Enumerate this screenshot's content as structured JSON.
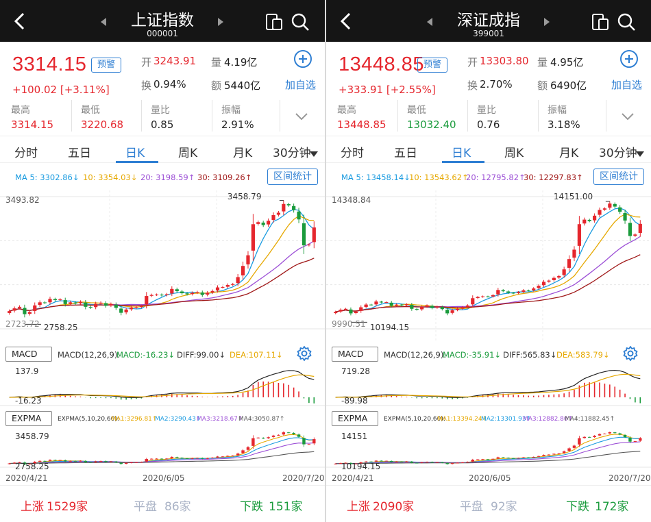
{
  "panels": [
    {
      "header": {
        "title": "上证指数",
        "code": "000001"
      },
      "quote": {
        "price": "3314.15",
        "alert_label": "预警",
        "change": "+100.02",
        "change_pct": "[+3.11%]",
        "open_label": "开",
        "open": "3243.91",
        "volume_label": "量",
        "volume": "4.19亿",
        "turnover_label": "换",
        "turnover": "0.94%",
        "amount_label": "额",
        "amount": "5440亿",
        "add_watch_label": "加自选"
      },
      "stats": [
        {
          "label": "最高",
          "value": "3314.15",
          "color": "red"
        },
        {
          "label": "最低",
          "value": "3220.68",
          "color": "red"
        },
        {
          "label": "量比",
          "value": "0.85",
          "color": "black"
        },
        {
          "label": "振幅",
          "value": "2.91%",
          "color": "black"
        }
      ],
      "tabs": [
        {
          "label": "分时"
        },
        {
          "label": "五日"
        },
        {
          "label": "日K",
          "active": true
        },
        {
          "label": "周K"
        },
        {
          "label": "月K"
        },
        {
          "label": "30分钟"
        }
      ],
      "ma_legend": [
        {
          "text": "MA 5: 3302.86↓",
          "color": "#1a9be0"
        },
        {
          "text": "10: 3354.03↓",
          "color": "#e6a800"
        },
        {
          "text": "20: 3198.59↑",
          "color": "#9c4fd6"
        },
        {
          "text": "30: 3109.26↑",
          "color": "#a01818"
        }
      ],
      "range_stats_label": "区间统计",
      "kline": {
        "top_label": "3493.82",
        "bottom_label": "2723.72",
        "high_mark": "3458.79",
        "low_mark": "2758.25"
      },
      "macd": {
        "button": "MACD",
        "params": "MACD(12,26,9):",
        "macd_val": "MACD:-16.23↓",
        "diff_val": "DIFF:99.00↓",
        "dea_val": "DEA:107.11↓",
        "top_label": "137.9",
        "bottom_label": "-16.23"
      },
      "expma": {
        "button": "EXPMA",
        "params": "EXPMA(5,10,20,60):",
        "ma1": "MA1:3296.81↑",
        "ma2": "MA2:3290.43↑",
        "ma3": "MA3:3218.67↑",
        "ma4": "MA4:3050.87↑",
        "top_label": "3458.79",
        "bottom_label": "2758.25"
      },
      "dates": [
        "2020/4/21",
        "2020/6/05",
        "2020/7/20"
      ],
      "footer": {
        "up_label": "上涨",
        "up_count": "1529家",
        "flat_label": "平盘",
        "flat_count": "86家",
        "down_label": "下跌",
        "down_count": "151家"
      }
    },
    {
      "header": {
        "title": "深证成指",
        "code": "399001"
      },
      "quote": {
        "price": "13448.85",
        "alert_label": "预警",
        "change": "+333.91",
        "change_pct": "[+2.55%]",
        "open_label": "开",
        "open": "13303.80",
        "volume_label": "量",
        "volume": "4.95亿",
        "turnover_label": "换",
        "turnover": "2.70%",
        "amount_label": "额",
        "amount": "6490亿",
        "add_watch_label": "加自选"
      },
      "stats": [
        {
          "label": "最高",
          "value": "13448.85",
          "color": "red"
        },
        {
          "label": "最低",
          "value": "13032.40",
          "color": "green"
        },
        {
          "label": "量比",
          "value": "0.76",
          "color": "black"
        },
        {
          "label": "振幅",
          "value": "3.18%",
          "color": "black"
        }
      ],
      "tabs": [
        {
          "label": "分时"
        },
        {
          "label": "五日"
        },
        {
          "label": "日K",
          "active": true
        },
        {
          "label": "周K"
        },
        {
          "label": "月K"
        },
        {
          "label": "30分钟"
        }
      ],
      "ma_legend": [
        {
          "text": "MA 5: 13458.14↓",
          "color": "#1a9be0"
        },
        {
          "text": "10: 13543.62↑",
          "color": "#e6a800"
        },
        {
          "text": "20: 12795.82↑",
          "color": "#9c4fd6"
        },
        {
          "text": "30: 12297.83↑",
          "color": "#a01818"
        }
      ],
      "range_stats_label": "区间统计",
      "kline": {
        "top_label": "14348.84",
        "bottom_label": "9990.51",
        "high_mark": "14151.00",
        "low_mark": "10194.15"
      },
      "macd": {
        "button": "MACD",
        "params": "MACD(12,26,9):",
        "macd_val": "MACD:-35.91↓",
        "diff_val": "DIFF:565.83↓",
        "dea_val": "DEA:583.79↓",
        "top_label": "719.28",
        "bottom_label": "-89.98"
      },
      "expma": {
        "button": "EXPMA",
        "params": "EXPMA(5,10,20,60):",
        "ma1": "MA1:13394.24↑",
        "ma2": "MA2:13301.93↑",
        "ma3": "MA3:12882.80↑",
        "ma4": "MA4:11882.45↑",
        "top_label": "14151",
        "bottom_label": "10194.15"
      },
      "dates": [
        "2020/4/21",
        "2020/6/05",
        "2020/7/20"
      ],
      "footer": {
        "up_label": "上涨",
        "up_count": "2090家",
        "flat_label": "平盘",
        "flat_count": "92家",
        "down_label": "下跌",
        "down_count": "172家"
      }
    }
  ],
  "colors": {
    "up": "#e5262d",
    "down": "#1a9b3c",
    "accent": "#2f7fd3",
    "header_bg": "#151515"
  },
  "chart_data": [
    {
      "type": "candlestick",
      "series": [
        {
          "name": "上证指数 close",
          "values": [
            2827,
            2843,
            2852,
            2809,
            2822,
            2860,
            2878,
            2875,
            2898,
            2891,
            2895,
            2868,
            2878,
            2871,
            2881,
            2852,
            2847,
            2869,
            2876,
            2858,
            2868,
            2846,
            2817,
            2836,
            2847,
            2851,
            2857,
            2915,
            2921,
            2923,
            2919,
            2925,
            2956,
            2943,
            2931,
            2925,
            2933,
            2938,
            2921,
            2934,
            2944,
            2965,
            2967,
            2979,
            2984,
            3025,
            3090,
            3152,
            3333,
            3345,
            3328,
            3353,
            3386,
            3400,
            3451,
            3443,
            3415,
            3361,
            3210,
            3214,
            3314
          ]
        }
      ],
      "ylim": [
        2723.72,
        3493.82
      ]
    },
    {
      "type": "candlestick",
      "series": [
        {
          "name": "深证成指 close",
          "values": [
            10550,
            10620,
            10650,
            10500,
            10560,
            10700,
            10790,
            10780,
            10890,
            10860,
            10870,
            10750,
            10790,
            10760,
            10800,
            10650,
            10620,
            10710,
            10760,
            10680,
            10720,
            10640,
            10500,
            10600,
            10650,
            10700,
            10760,
            11000,
            11040,
            11060,
            11050,
            11100,
            11270,
            11230,
            11180,
            11160,
            11200,
            11260,
            11250,
            11320,
            11410,
            11540,
            11580,
            11670,
            11730,
            11950,
            12290,
            12600,
            13440,
            13590,
            13540,
            13720,
            13910,
            13960,
            14120,
            14020,
            13850,
            13560,
            13050,
            13100,
            13450
          ]
        }
      ],
      "ylim": [
        9990.51,
        14348.84
      ]
    }
  ]
}
